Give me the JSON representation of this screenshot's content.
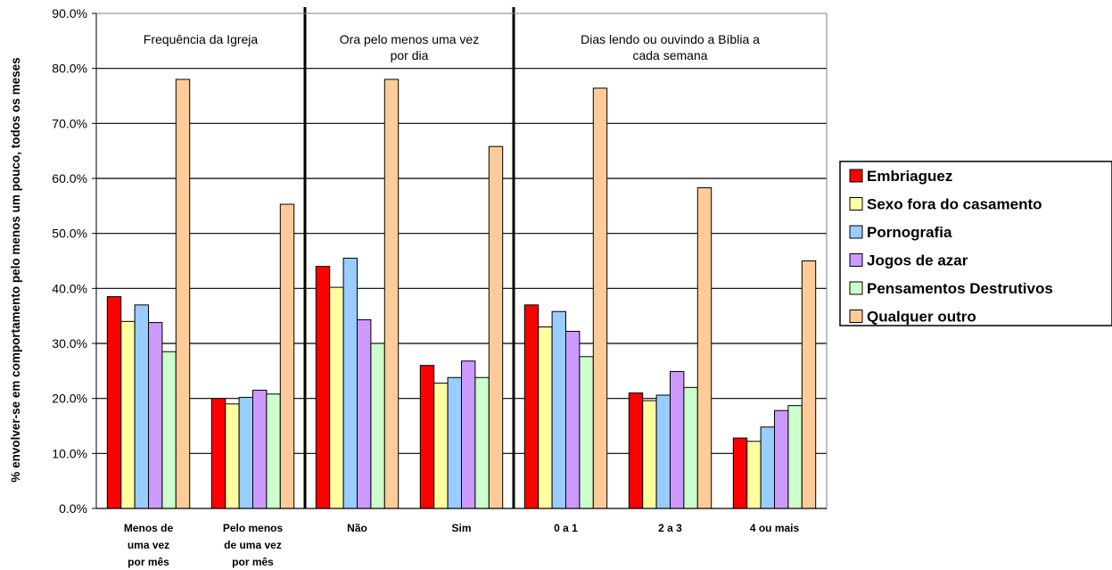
{
  "chart_data": {
    "type": "bar",
    "ylabel": "% envolver-se em comportamento pelo menos um pouco, todos os meses",
    "xlabel": "",
    "ylim": [
      0,
      90
    ],
    "y_ticks": [
      "0.0%",
      "10.0%",
      "20.0%",
      "30.0%",
      "40.0%",
      "50.0%",
      "60.0%",
      "70.0%",
      "80.0%",
      "90.0%"
    ],
    "grid": true,
    "legend_position": "right",
    "groups": [
      {
        "title": [
          "Frequência da Igreja"
        ],
        "categories": [
          0,
          1
        ]
      },
      {
        "title": [
          "Ora pelo menos uma vez",
          "por dia"
        ],
        "categories": [
          2,
          3
        ]
      },
      {
        "title": [
          "Dias lendo ou ouvindo a Bíblia a",
          "cada semana"
        ],
        "categories": [
          4,
          5,
          6
        ]
      }
    ],
    "categories": [
      [
        "Menos de",
        "uma vez",
        "por mês"
      ],
      [
        "Pelo menos",
        "de uma vez",
        "por mês"
      ],
      [
        "Não"
      ],
      [
        "Sim"
      ],
      [
        "0 a 1"
      ],
      [
        "2 a 3"
      ],
      [
        "4 ou mais"
      ]
    ],
    "series": [
      {
        "name": "Embriaguez",
        "color": "#ff0000",
        "values": [
          38.5,
          20.0,
          44.0,
          26.0,
          37.0,
          21.0,
          12.8
        ]
      },
      {
        "name": "Sexo fora do casamento",
        "color": "#ffffa0",
        "values": [
          34.0,
          19.0,
          40.2,
          22.8,
          33.0,
          19.6,
          12.2
        ]
      },
      {
        "name": "Pornografia",
        "color": "#99ccff",
        "values": [
          37.0,
          20.2,
          45.5,
          23.8,
          35.8,
          20.6,
          14.8
        ]
      },
      {
        "name": "Jogos de azar",
        "color": "#cc99ff",
        "values": [
          33.8,
          21.5,
          34.3,
          26.8,
          32.2,
          24.9,
          17.8
        ]
      },
      {
        "name": "Pensamentos Destrutivos",
        "color": "#ccffcc",
        "values": [
          28.5,
          20.8,
          30.0,
          23.8,
          27.6,
          22.0,
          18.7
        ]
      },
      {
        "name": "Qualquer outro",
        "color": "#ffcc99",
        "values": [
          78.0,
          55.3,
          78.0,
          65.8,
          76.4,
          58.3,
          45.0
        ]
      }
    ]
  }
}
